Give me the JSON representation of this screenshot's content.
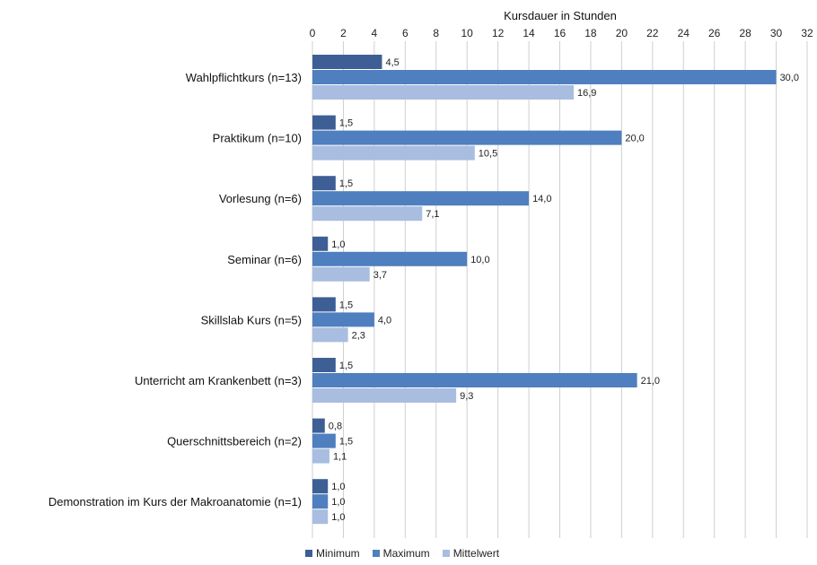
{
  "chart_data": {
    "type": "bar",
    "orientation": "horizontal",
    "title": "Kursdauer in Stunden",
    "xlabel": "Kursdauer in Stunden",
    "ylabel": "",
    "xlim": [
      0,
      32
    ],
    "ticks": [
      "0",
      "2",
      "4",
      "6",
      "8",
      "10",
      "12",
      "14",
      "16",
      "18",
      "20",
      "22",
      "24",
      "26",
      "28",
      "30",
      "32"
    ],
    "axis_position": "top",
    "grid": true,
    "legend_position": "bottom",
    "categories": [
      "Wahlpflichtkurs (n=13)",
      "Praktikum (n=10)",
      "Vorlesung (n=6)",
      "Seminar (n=6)",
      "Skillslab Kurs (n=5)",
      "Unterricht am Krankenbett  (n=3)",
      "Querschnittsbereich  (n=2)",
      "Demonstration im Kurs der Makroanatomie (n=1)"
    ],
    "series": [
      {
        "name": "Minimum",
        "color": "#3e5f95",
        "values": [
          4.5,
          1.5,
          1.5,
          1.0,
          1.5,
          1.5,
          0.8,
          1.0
        ],
        "labels": [
          "4,5",
          "1,5",
          "1,5",
          "1,0",
          "1,5",
          "1,5",
          "0,8",
          "1,0"
        ]
      },
      {
        "name": "Maximum",
        "color": "#4f7fbf",
        "values": [
          30.0,
          20.0,
          14.0,
          10.0,
          4.0,
          21.0,
          1.5,
          1.0
        ],
        "labels": [
          "30,0",
          "20,0",
          "14,0",
          "10,0",
          "4,0",
          "21,0",
          "1,5",
          "1,0"
        ]
      },
      {
        "name": "Mittelwert",
        "color": "#a8bde0",
        "values": [
          16.9,
          10.5,
          7.1,
          3.7,
          2.3,
          9.3,
          1.1,
          1.0
        ],
        "labels": [
          "16,9",
          "10,5",
          "7,1",
          "3,7",
          "2,3",
          "9,3",
          "1,1",
          "1,0"
        ]
      }
    ]
  }
}
